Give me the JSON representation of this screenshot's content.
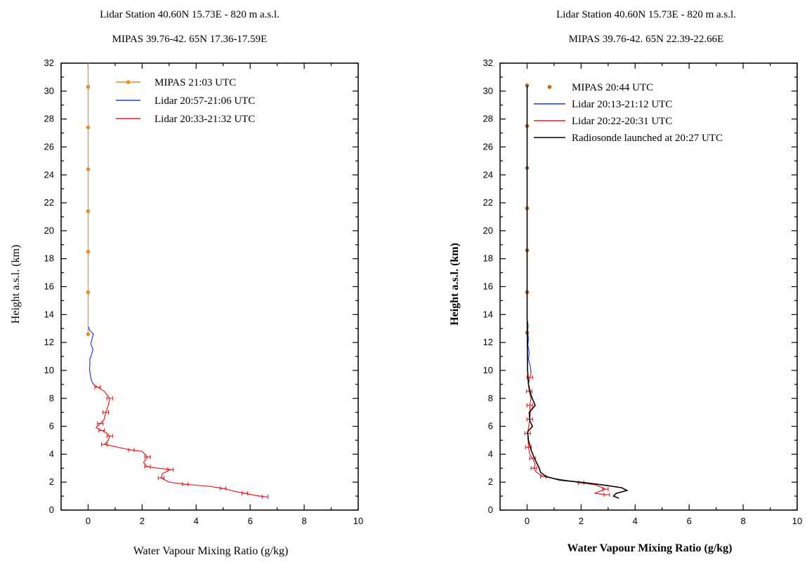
{
  "figure": {
    "left": {
      "title_line1": "Lidar Station  40.60N 15.73E - 820 m a.s.l.",
      "title_line2": "MIPAS 39.76-42. 65N  17.36-17.59E"
    },
    "right": {
      "title_line1": "Lidar Station  40.60N 15.73E - 820 m a.s.l.",
      "title_line2": "MIPAS 39.76-42. 65N  22.39-22.66E"
    }
  },
  "colors": {
    "mipas": "#f28c1a",
    "mipas_dark": "#c86414",
    "lidar_blue": "#1f3fe0",
    "lidar_red": "#e81c1c",
    "radiosonde": "#000000",
    "axes": "#000000"
  },
  "chart_data": [
    {
      "type": "line",
      "xlabel": "Water Vapour Mixing Ratio (g/kg)",
      "ylabel": "Height a.s.l. (km)",
      "xlim": [
        -1,
        10
      ],
      "ylim": [
        0,
        32
      ],
      "x_ticks": [
        "0",
        "2",
        "4",
        "6",
        "8",
        "10"
      ],
      "y_ticks": [
        "0",
        "2",
        "4",
        "6",
        "8",
        "10",
        "12",
        "14",
        "16",
        "18",
        "20",
        "22",
        "24",
        "26",
        "28",
        "30",
        "32"
      ],
      "legend_position": "top",
      "series": [
        {
          "name": "MIPAS 21:03 UTC",
          "style": "line-markers",
          "color": "#f28c1a",
          "points": [
            [
              0.0,
              12.6
            ],
            [
              0.0,
              15.6
            ],
            [
              0.0,
              18.5
            ],
            [
              0.0,
              21.4
            ],
            [
              0.0,
              24.4
            ],
            [
              0.0,
              27.4
            ],
            [
              0.0,
              30.3
            ],
            [
              0.0,
              32.0
            ]
          ]
        },
        {
          "name": "Lidar 20:57-21:06 UTC",
          "style": "line",
          "color": "#1f3fe0",
          "points": [
            [
              0.2,
              9.0
            ],
            [
              0.12,
              9.3
            ],
            [
              0.08,
              9.7
            ],
            [
              0.05,
              10.1
            ],
            [
              0.07,
              10.5
            ],
            [
              0.06,
              10.8
            ],
            [
              0.12,
              11.1
            ],
            [
              0.18,
              11.5
            ],
            [
              0.1,
              11.9
            ],
            [
              0.15,
              12.3
            ],
            [
              0.2,
              12.6
            ],
            [
              0.05,
              12.9
            ],
            [
              0.02,
              13.1
            ]
          ]
        },
        {
          "name": "Lidar 20:33-21:32 UTC",
          "style": "line-errorbars",
          "color": "#e81c1c",
          "points": [
            [
              6.55,
              0.95
            ],
            [
              6.2,
              1.05
            ],
            [
              5.8,
              1.2
            ],
            [
              5.4,
              1.35
            ],
            [
              5.0,
              1.55
            ],
            [
              4.5,
              1.7
            ],
            [
              3.6,
              1.85
            ],
            [
              3.0,
              2.0
            ],
            [
              2.7,
              2.3
            ],
            [
              2.75,
              2.6
            ],
            [
              3.05,
              2.9
            ],
            [
              2.6,
              3.0
            ],
            [
              2.2,
              3.1
            ],
            [
              2.05,
              3.4
            ],
            [
              2.2,
              3.8
            ],
            [
              2.0,
              4.2
            ],
            [
              1.6,
              4.3
            ],
            [
              1.1,
              4.5
            ],
            [
              0.6,
              4.7
            ],
            [
              0.75,
              5.0
            ],
            [
              0.8,
              5.3
            ],
            [
              0.7,
              5.5
            ],
            [
              0.5,
              5.7
            ],
            [
              0.3,
              5.9
            ],
            [
              0.45,
              6.2
            ],
            [
              0.6,
              6.5
            ],
            [
              0.65,
              7.0
            ],
            [
              0.75,
              7.5
            ],
            [
              0.8,
              8.0
            ],
            [
              0.6,
              8.5
            ],
            [
              0.35,
              8.8
            ],
            [
              0.2,
              9.0
            ]
          ]
        }
      ]
    },
    {
      "type": "line",
      "xlabel": "Water Vapour Mixing Ratio (g/kg)",
      "ylabel": "Height a.s.l. (km)",
      "xlim": [
        -1,
        10
      ],
      "ylim": [
        0,
        32
      ],
      "x_ticks": [
        "0",
        "2",
        "4",
        "6",
        "8",
        "10"
      ],
      "y_ticks": [
        "0",
        "2",
        "4",
        "6",
        "8",
        "10",
        "12",
        "14",
        "16",
        "18",
        "20",
        "22",
        "24",
        "26",
        "28",
        "30",
        "32"
      ],
      "legend_position": "top",
      "series": [
        {
          "name": "MIPAS 20:44 UTC",
          "style": "markers",
          "color": "#c86414",
          "points": [
            [
              0.0,
              12.7
            ],
            [
              0.0,
              15.6
            ],
            [
              0.0,
              18.6
            ],
            [
              0.0,
              21.6
            ],
            [
              0.0,
              24.5
            ],
            [
              0.0,
              27.5
            ],
            [
              0.0,
              30.4
            ]
          ]
        },
        {
          "name": "Lidar 20:13-21:12 UTC",
          "style": "line",
          "color": "#1f3fe0",
          "points": [
            [
              0.15,
              9.8
            ],
            [
              0.12,
              10.3
            ],
            [
              0.05,
              10.8
            ],
            [
              0.08,
              11.3
            ],
            [
              0.03,
              11.8
            ],
            [
              0.05,
              12.3
            ],
            [
              0.02,
              12.8
            ],
            [
              0.04,
              13.2
            ],
            [
              0.01,
              13.6
            ]
          ]
        },
        {
          "name": "Lidar 20:22-20:31 UTC",
          "style": "line-errorbars",
          "color": "#e81c1c",
          "points": [
            [
              2.95,
              1.1
            ],
            [
              2.5,
              1.2
            ],
            [
              2.9,
              1.5
            ],
            [
              2.55,
              1.8
            ],
            [
              2.0,
              1.95
            ],
            [
              1.2,
              2.2
            ],
            [
              0.6,
              2.4
            ],
            [
              0.35,
              2.7
            ],
            [
              0.25,
              3.0
            ],
            [
              0.3,
              3.3
            ],
            [
              0.2,
              3.7
            ],
            [
              0.1,
              4.0
            ],
            [
              0.05,
              4.5
            ],
            [
              0.04,
              5.0
            ],
            [
              0.02,
              5.5
            ],
            [
              0.06,
              6.0
            ],
            [
              0.1,
              6.5
            ],
            [
              0.12,
              7.0
            ],
            [
              0.1,
              7.5
            ],
            [
              0.15,
              8.0
            ],
            [
              0.08,
              8.5
            ],
            [
              0.05,
              9.0
            ],
            [
              0.1,
              9.5
            ],
            [
              0.15,
              9.8
            ]
          ]
        },
        {
          "name": "Radiosonde launched at 20:27 UTC",
          "style": "line",
          "color": "#000000",
          "points": [
            [
              3.4,
              0.85
            ],
            [
              3.2,
              1.0
            ],
            [
              3.3,
              1.2
            ],
            [
              3.7,
              1.4
            ],
            [
              3.5,
              1.6
            ],
            [
              3.0,
              1.75
            ],
            [
              2.2,
              1.95
            ],
            [
              1.2,
              2.15
            ],
            [
              0.7,
              2.4
            ],
            [
              0.5,
              2.7
            ],
            [
              0.45,
              3.0
            ],
            [
              0.35,
              3.4
            ],
            [
              0.25,
              3.8
            ],
            [
              0.15,
              4.3
            ],
            [
              0.05,
              5.0
            ],
            [
              0.02,
              5.6
            ],
            [
              0.2,
              6.0
            ],
            [
              0.1,
              6.4
            ],
            [
              0.08,
              7.0
            ],
            [
              0.3,
              7.5
            ],
            [
              0.15,
              8.2
            ],
            [
              0.05,
              9.0
            ],
            [
              0.02,
              10.0
            ],
            [
              0.01,
              12.0
            ],
            [
              0.0,
              14.0
            ],
            [
              0.0,
              20.0
            ],
            [
              0.0,
              25.0
            ],
            [
              0.0,
              30.4
            ]
          ]
        }
      ]
    }
  ]
}
